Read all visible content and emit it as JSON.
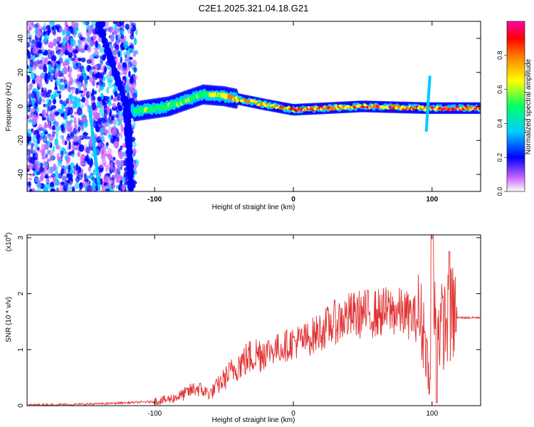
{
  "figure": {
    "title": "C2E1.2025.321.04.18.G21"
  },
  "chart_data": [
    {
      "type": "heatmap",
      "panel": "top",
      "xlabel": "Height of straight line (km)",
      "ylabel": "Frequency (Hz)",
      "xlim": [
        -192,
        135
      ],
      "ylim": [
        -50,
        50
      ],
      "xticks": [
        -100,
        0,
        100
      ],
      "yticks": [
        -40,
        -20,
        0,
        20,
        40
      ],
      "colorbar": {
        "label": "Normalized spectral amplitude",
        "range": [
          0,
          1
        ],
        "ticks": [
          "0.0",
          "0.2",
          "0.4",
          "0.6",
          "0.8"
        ],
        "tick_values": [
          0,
          0.2,
          0.4,
          0.6,
          0.8
        ],
        "colors": [
          "#ffffff",
          "#cc66ff",
          "#0000ff",
          "#00ccff",
          "#00ff66",
          "#ffff00",
          "#ff7700",
          "#ff0000",
          "#ff00aa"
        ]
      },
      "features": [
        {
          "name": "descending trace",
          "points": [
            [
              -140,
              48
            ],
            [
              -120,
              0
            ],
            [
              -117,
              -48
            ]
          ]
        },
        {
          "name": "steep trace",
          "points": [
            [
              -147,
              0
            ],
            [
              -140,
              -48
            ]
          ]
        },
        {
          "name": "main ridge",
          "points": [
            [
              -115,
              -3
            ],
            [
              -90,
              0
            ],
            [
              -65,
              7
            ],
            [
              -50,
              6
            ],
            [
              -20,
              1
            ],
            [
              0,
              -2
            ],
            [
              50,
              0
            ],
            [
              95,
              -1
            ],
            [
              135,
              -1
            ]
          ]
        }
      ]
    },
    {
      "type": "line",
      "panel": "bottom",
      "xlabel": "Height of straight line (km)",
      "ylabel": "SNR (10 * v/v)",
      "ylabel_scale": "(x10",
      "ylabel_exp": "4",
      "xlim": [
        -192,
        135
      ],
      "ylim": [
        0,
        3.05
      ],
      "xticks": [
        -100,
        0,
        100
      ],
      "yticks": [
        0,
        1,
        2,
        3
      ],
      "series": [
        {
          "name": "SNR",
          "color": "#e03030",
          "x": [
            -192,
            -160,
            -140,
            -120,
            -100,
            -90,
            -80,
            -70,
            -60,
            -50,
            -40,
            -30,
            -20,
            -10,
            0,
            10,
            20,
            30,
            40,
            50,
            60,
            70,
            80,
            90,
            95,
            98,
            100,
            102,
            105,
            110,
            115,
            120,
            135
          ],
          "y": [
            0.01,
            0.02,
            0.03,
            0.05,
            0.07,
            0.1,
            0.18,
            0.3,
            0.2,
            0.45,
            0.7,
            0.85,
            0.95,
            1.0,
            1.1,
            1.15,
            1.3,
            1.45,
            1.55,
            1.6,
            1.6,
            1.65,
            1.6,
            1.5,
            1.2,
            0.4,
            0.35,
            1.5,
            1.3,
            1.4,
            1.55,
            1.57,
            1.57
          ]
        }
      ]
    }
  ]
}
